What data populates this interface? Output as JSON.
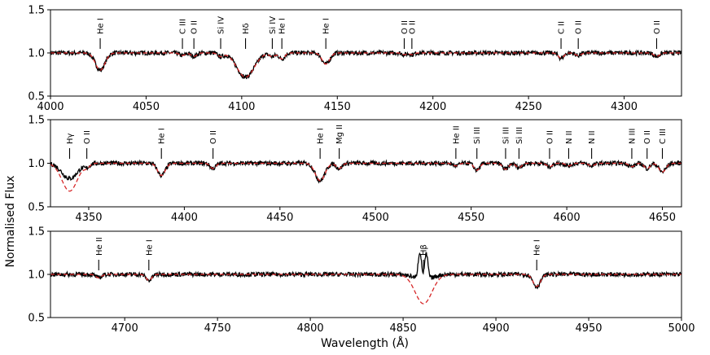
{
  "chart_data": {
    "type": "line",
    "xlabel": "Wavelength (Å)",
    "ylabel": "Normalised Flux",
    "colors": {
      "observed": "#000000",
      "model": "#d62728"
    },
    "panels": [
      {
        "xlim": [
          4000,
          4330
        ],
        "ylim": [
          0.5,
          1.5
        ],
        "xticks": [
          "4000",
          "4050",
          "4100",
          "4150",
          "4200",
          "4250",
          "4300"
        ],
        "yticks": [
          "0.5",
          "1.0",
          "1.5"
        ],
        "lines": [
          {
            "wl": 4026,
            "label": "He I",
            "depth": 0.2,
            "w": 2.5
          },
          {
            "wl": 4069,
            "label": "C III",
            "depth": 0.03,
            "w": 1.5
          },
          {
            "wl": 4075,
            "label": "O II",
            "depth": 0.04,
            "w": 1.5
          },
          {
            "wl": 4089,
            "label": "Si IV",
            "depth": 0.04,
            "w": 1.5
          },
          {
            "wl": 4102,
            "label": "Hδ",
            "depth": 0.28,
            "w": 4.5
          },
          {
            "wl": 4116,
            "label": "Si IV",
            "depth": 0.04,
            "w": 1.5
          },
          {
            "wl": 4121,
            "label": "He I",
            "depth": 0.07,
            "w": 1.5
          },
          {
            "wl": 4144,
            "label": "He I",
            "depth": 0.13,
            "w": 2.0
          },
          {
            "wl": 4185,
            "label": "O II",
            "depth": 0.02,
            "w": 1.2
          },
          {
            "wl": 4189,
            "label": "O II",
            "depth": 0.02,
            "w": 1.2
          },
          {
            "wl": 4267,
            "label": "C II",
            "depth": 0.06,
            "w": 1.5
          },
          {
            "wl": 4276,
            "label": "O II",
            "depth": 0.03,
            "w": 1.5
          },
          {
            "wl": 4317,
            "label": "O II",
            "depth": 0.04,
            "w": 1.5
          }
        ],
        "emission": []
      },
      {
        "xlim": [
          4330,
          4660
        ],
        "ylim": [
          0.5,
          1.5
        ],
        "xticks": [
          "4350",
          "4400",
          "4450",
          "4500",
          "4550",
          "4600",
          "4650"
        ],
        "yticks": [
          "0.5",
          "1.0",
          "1.5"
        ],
        "lines": [
          {
            "wl": 4340,
            "label": "Hγ",
            "depth": 0.32,
            "w": 4.0
          },
          {
            "wl": 4349,
            "label": "O II",
            "depth": 0.04,
            "w": 1.5
          },
          {
            "wl": 4388,
            "label": "He I",
            "depth": 0.14,
            "w": 2.0
          },
          {
            "wl": 4415,
            "label": "O II",
            "depth": 0.06,
            "w": 1.5
          },
          {
            "wl": 4471,
            "label": "He I",
            "depth": 0.2,
            "w": 2.5
          },
          {
            "wl": 4481,
            "label": "Mg II",
            "depth": 0.06,
            "w": 1.5
          },
          {
            "wl": 4542,
            "label": "He II",
            "depth": 0.03,
            "w": 1.5
          },
          {
            "wl": 4553,
            "label": "Si III",
            "depth": 0.08,
            "w": 1.5
          },
          {
            "wl": 4568,
            "label": "Si III",
            "depth": 0.07,
            "w": 1.5
          },
          {
            "wl": 4575,
            "label": "Si III",
            "depth": 0.05,
            "w": 1.5
          },
          {
            "wl": 4591,
            "label": "O II",
            "depth": 0.04,
            "w": 1.5
          },
          {
            "wl": 4601,
            "label": "N II",
            "depth": 0.03,
            "w": 1.5
          },
          {
            "wl": 4613,
            "label": "N II",
            "depth": 0.03,
            "w": 1.5
          },
          {
            "wl": 4634,
            "label": "N III",
            "depth": 0.04,
            "w": 1.5
          },
          {
            "wl": 4642,
            "label": "O II",
            "depth": 0.06,
            "w": 1.5
          },
          {
            "wl": 4650,
            "label": "C III",
            "depth": 0.1,
            "w": 1.8
          }
        ],
        "emission": []
      },
      {
        "xlim": [
          4660,
          5000
        ],
        "ylim": [
          0.5,
          1.5
        ],
        "xticks": [
          "4700",
          "4750",
          "4800",
          "4850",
          "4900",
          "4950",
          "5000"
        ],
        "yticks": [
          "0.5",
          "1.0",
          "1.5"
        ],
        "lines": [
          {
            "wl": 4686,
            "label": "He II",
            "depth": 0.04,
            "w": 1.5
          },
          {
            "wl": 4713,
            "label": "He I",
            "depth": 0.07,
            "w": 1.5
          },
          {
            "wl": 4861,
            "label": "Hβ",
            "depth": 0.34,
            "w": 4.5
          },
          {
            "wl": 4922,
            "label": "He I",
            "depth": 0.14,
            "w": 2.0
          }
        ],
        "emission": [
          {
            "wl": 4859.0,
            "height": 0.32
          },
          {
            "wl": 4862.5,
            "height": 0.3
          }
        ]
      }
    ]
  }
}
